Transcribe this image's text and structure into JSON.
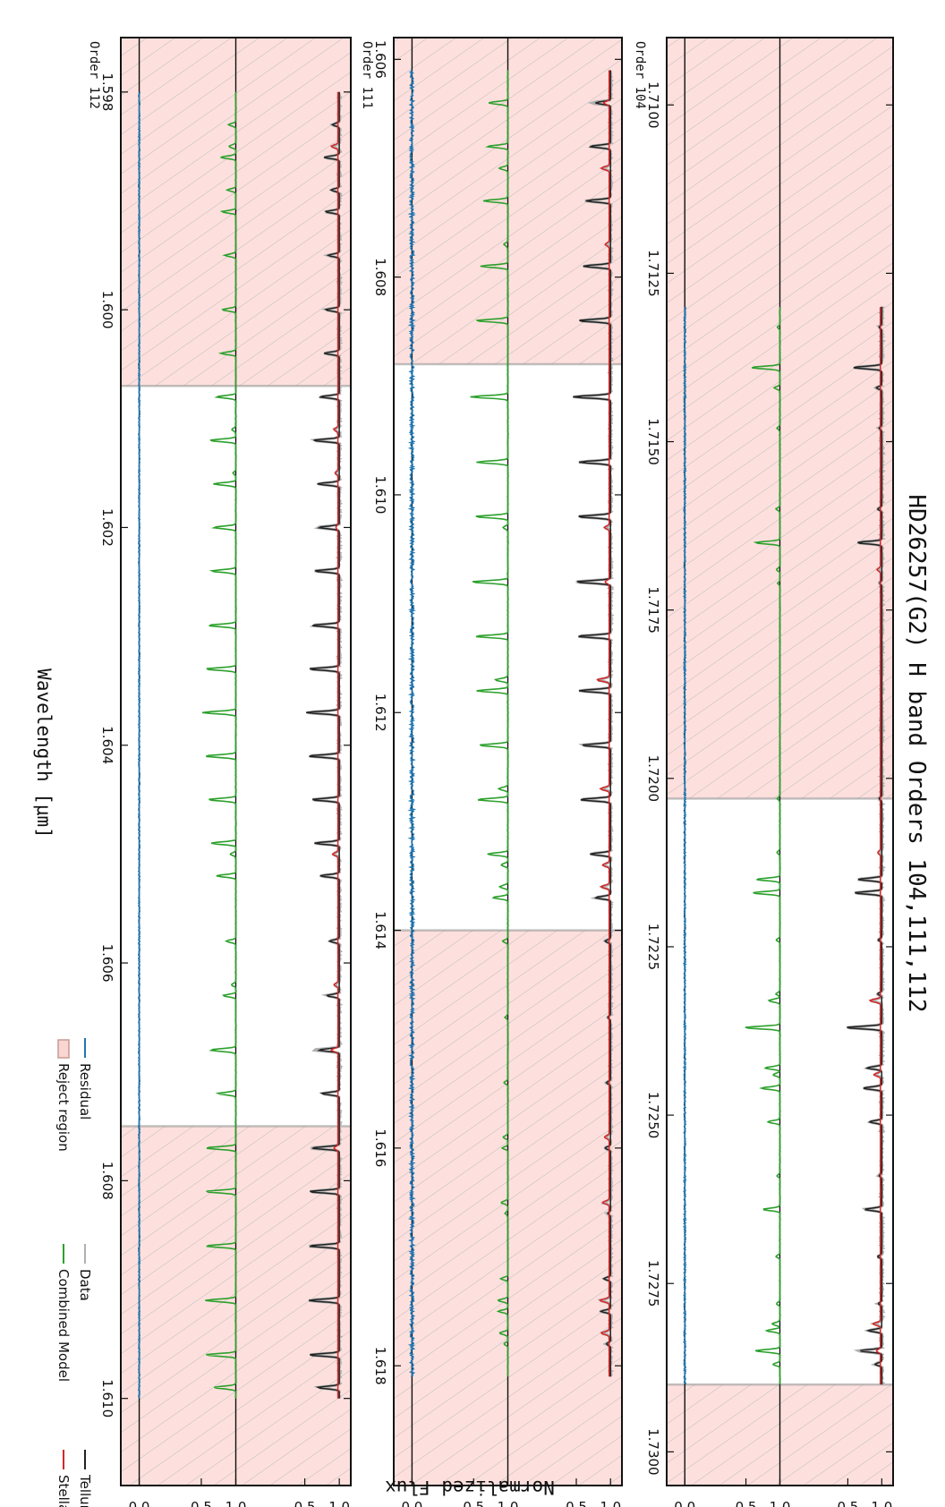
{
  "figure": {
    "title": "HD26257(G2) H band Orders 104,111,112",
    "xlabel": "Wavelength [μm]",
    "ylabel": "Normalized Flux",
    "legend": [
      {
        "label": "Telluric Model",
        "color": "#222222",
        "kind": "line"
      },
      {
        "label": "Stellar Model",
        "color": "#d62728",
        "kind": "line"
      },
      {
        "label": "Data",
        "color": "#b0b0b0",
        "kind": "line"
      },
      {
        "label": "Combined Model",
        "color": "#2ca02c",
        "kind": "line"
      },
      {
        "label": "Residual",
        "color": "#1f77b4",
        "kind": "line"
      },
      {
        "label": "Reject region",
        "color": "#f9d6d2",
        "kind": "patch"
      }
    ],
    "colors": {
      "telluric": "#222222",
      "stellar": "#d62728",
      "data": "#b0b0b0",
      "combined": "#2ca02c",
      "residual": "#1f77b4",
      "reject": "#fde0dd"
    },
    "band_ticks": [
      "1.0",
      "0.5",
      "1.0",
      "0.5",
      "0.0"
    ]
  },
  "chart_data": [
    {
      "type": "line",
      "order_label": "Order 104",
      "xlim": [
        1.709,
        1.7305
      ],
      "xticks": [
        1.71,
        1.7125,
        1.715,
        1.7175,
        1.72,
        1.7225,
        1.725,
        1.7275,
        1.73
      ],
      "xtick_labels": [
        "1.7100",
        "1.7125",
        "1.7150",
        "1.7175",
        "1.7200",
        "1.7225",
        "1.7250",
        "1.7275",
        "1.7300"
      ],
      "data_range": [
        1.713,
        1.729
      ],
      "reject_regions": [
        [
          1.709,
          1.7203
        ],
        [
          1.729,
          1.7305
        ]
      ],
      "telluric_lines": [
        [
          1.7133,
          0.04
        ],
        [
          1.7139,
          0.42
        ],
        [
          1.7142,
          0.08
        ],
        [
          1.7148,
          0.04
        ],
        [
          1.716,
          0.06
        ],
        [
          1.7165,
          0.36
        ],
        [
          1.7171,
          0.03
        ],
        [
          1.7203,
          0.04
        ],
        [
          1.7215,
          0.35
        ],
        [
          1.7217,
          0.4
        ],
        [
          1.7224,
          0.05
        ],
        [
          1.7232,
          0.06
        ],
        [
          1.7237,
          0.52
        ],
        [
          1.7243,
          0.22
        ],
        [
          1.7246,
          0.27
        ],
        [
          1.7251,
          0.18
        ],
        [
          1.7259,
          0.04
        ],
        [
          1.7264,
          0.25
        ],
        [
          1.7271,
          0.06
        ],
        [
          1.7278,
          0.05
        ],
        [
          1.7282,
          0.2
        ],
        [
          1.7285,
          0.32
        ],
        [
          1.7287,
          0.1
        ]
      ],
      "stellar_lines": [
        [
          1.7169,
          0.05
        ],
        [
          1.7211,
          0.04
        ],
        [
          1.7233,
          0.16
        ],
        [
          1.7244,
          0.1
        ],
        [
          1.7281,
          0.11
        ],
        [
          1.7285,
          0.06
        ]
      ],
      "residual_noise": 0.008
    },
    {
      "type": "line",
      "order_label": "Order 111",
      "xlim": [
        1.6058,
        1.6191
      ],
      "xticks": [
        1.606,
        1.608,
        1.61,
        1.612,
        1.614,
        1.616,
        1.618
      ],
      "xtick_labels": [
        "1.606",
        "1.608",
        "1.610",
        "1.612",
        "1.614",
        "1.616",
        "1.618"
      ],
      "data_range": [
        1.6061,
        1.6181
      ],
      "reject_regions": [
        [
          1.6058,
          1.6088
        ],
        [
          1.614,
          1.6191
        ]
      ],
      "telluric_lines": [
        [
          1.6064,
          0.22
        ],
        [
          1.6068,
          0.3
        ],
        [
          1.6073,
          0.36
        ],
        [
          1.6079,
          0.4
        ],
        [
          1.6084,
          0.47
        ],
        [
          1.6091,
          0.55
        ],
        [
          1.6097,
          0.46
        ],
        [
          1.6102,
          0.48
        ],
        [
          1.6108,
          0.5
        ],
        [
          1.6113,
          0.48
        ],
        [
          1.6118,
          0.46
        ],
        [
          1.6123,
          0.42
        ],
        [
          1.6128,
          0.45
        ],
        [
          1.6133,
          0.3
        ],
        [
          1.6137,
          0.22
        ],
        [
          1.6141,
          0.08
        ],
        [
          1.6148,
          0.04
        ],
        [
          1.6154,
          0.06
        ],
        [
          1.616,
          0.08
        ],
        [
          1.6166,
          0.04
        ],
        [
          1.6172,
          0.1
        ],
        [
          1.6175,
          0.14
        ],
        [
          1.6178,
          0.06
        ]
      ],
      "stellar_lines": [
        [
          1.6064,
          0.08
        ],
        [
          1.607,
          0.12
        ],
        [
          1.6077,
          0.06
        ],
        [
          1.6103,
          0.07
        ],
        [
          1.6108,
          0.06
        ],
        [
          1.6117,
          0.18
        ],
        [
          1.6127,
          0.13
        ],
        [
          1.6134,
          0.1
        ],
        [
          1.6136,
          0.12
        ],
        [
          1.6159,
          0.07
        ],
        [
          1.6165,
          0.1
        ],
        [
          1.6174,
          0.14
        ],
        [
          1.6177,
          0.12
        ]
      ],
      "residual_noise": 0.018
    },
    {
      "type": "line",
      "order_label": "Order 112",
      "xlim": [
        1.5975,
        1.6108
      ],
      "xticks": [
        1.598,
        1.6,
        1.602,
        1.604,
        1.606,
        1.608,
        1.61
      ],
      "xtick_labels": [
        "1.598",
        "1.600",
        "1.602",
        "1.604",
        "1.606",
        "1.608",
        "1.610"
      ],
      "data_range": [
        1.598,
        1.61
      ],
      "reject_regions": [
        [
          1.5975,
          1.6007
        ],
        [
          1.6075,
          1.6108
        ]
      ],
      "telluric_lines": [
        [
          1.5983,
          0.1
        ],
        [
          1.5986,
          0.22
        ],
        [
          1.5989,
          0.12
        ],
        [
          1.5991,
          0.2
        ],
        [
          1.5995,
          0.16
        ],
        [
          1.6,
          0.2
        ],
        [
          1.6004,
          0.22
        ],
        [
          1.6008,
          0.28
        ],
        [
          1.6012,
          0.38
        ],
        [
          1.6016,
          0.32
        ],
        [
          1.602,
          0.3
        ],
        [
          1.6024,
          0.36
        ],
        [
          1.6029,
          0.4
        ],
        [
          1.6033,
          0.44
        ],
        [
          1.6037,
          0.48
        ],
        [
          1.6041,
          0.45
        ],
        [
          1.6045,
          0.4
        ],
        [
          1.6049,
          0.36
        ],
        [
          1.6052,
          0.28
        ],
        [
          1.6058,
          0.14
        ],
        [
          1.6063,
          0.18
        ],
        [
          1.6068,
          0.3
        ],
        [
          1.6072,
          0.26
        ],
        [
          1.6077,
          0.4
        ],
        [
          1.6081,
          0.44
        ],
        [
          1.6086,
          0.44
        ],
        [
          1.6091,
          0.44
        ],
        [
          1.6096,
          0.44
        ],
        [
          1.6099,
          0.32
        ]
      ],
      "stellar_lines": [
        [
          1.5985,
          0.1
        ],
        [
          1.6011,
          0.06
        ],
        [
          1.6015,
          0.04
        ],
        [
          1.602,
          0.03
        ],
        [
          1.605,
          0.08
        ],
        [
          1.6062,
          0.06
        ],
        [
          1.6068,
          0.1
        ],
        [
          1.6077,
          0.06
        ]
      ],
      "residual_noise": 0.006
    }
  ]
}
